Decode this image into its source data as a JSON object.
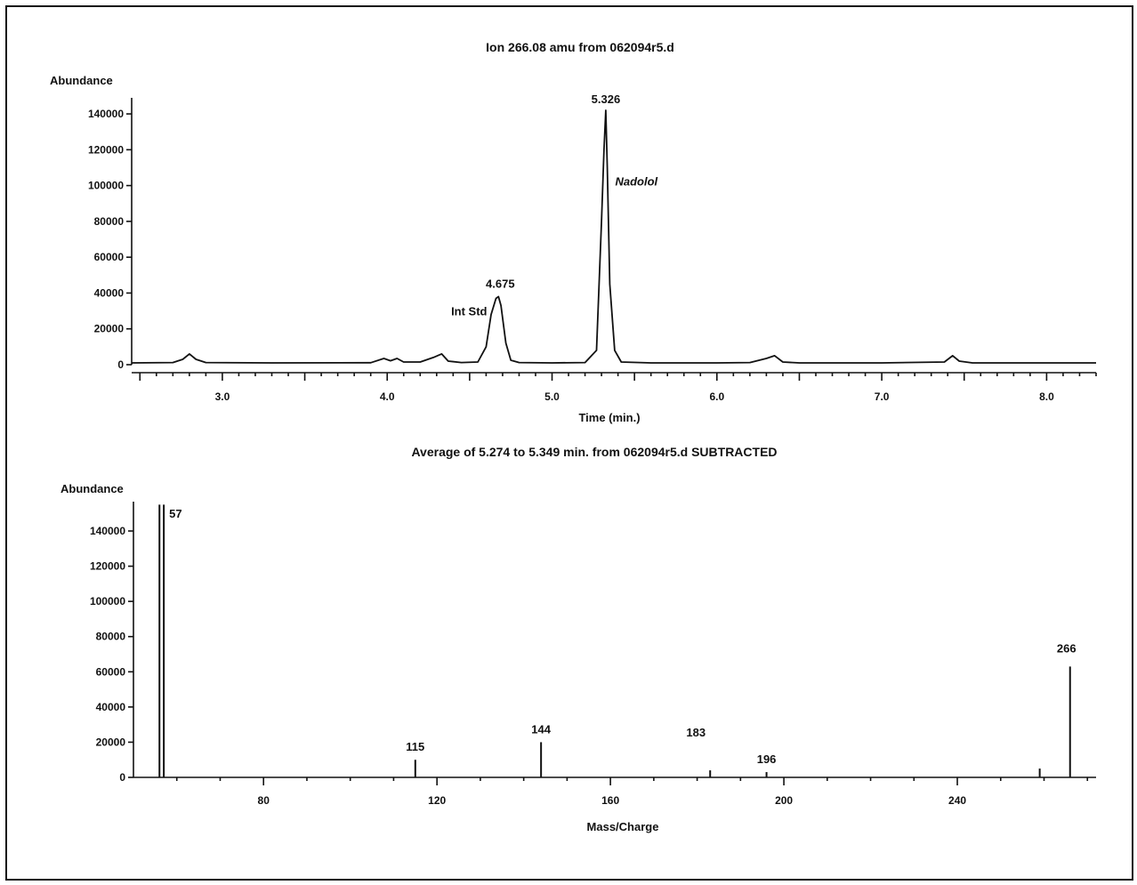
{
  "chart_data": [
    {
      "type": "line",
      "title": "Ion 266.08 amu from 062094r5.d",
      "xlabel": "Time (min.)",
      "ylabel": "Abundance",
      "xlim": [
        2.45,
        8.3
      ],
      "ylim": [
        0,
        145000
      ],
      "xticks": [
        3.0,
        4.0,
        5.0,
        6.0,
        7.0,
        8.0
      ],
      "xtick_labels": [
        "3.0",
        "4.0",
        "5.0",
        "6.0",
        "7.0",
        "8.0"
      ],
      "yticks": [
        0,
        20000,
        40000,
        60000,
        80000,
        100000,
        120000,
        140000
      ],
      "ytick_labels": [
        "0",
        "20000",
        "40000",
        "60000",
        "80000",
        "100000",
        "120000",
        "140000"
      ],
      "series": [
        {
          "x": [
            2.45,
            2.7,
            2.76,
            2.8,
            2.84,
            2.9,
            3.3,
            3.9,
            3.98,
            4.02,
            4.06,
            4.1,
            4.2,
            4.28,
            4.33,
            4.37,
            4.45,
            4.55,
            4.6,
            4.63,
            4.66,
            4.675,
            4.69,
            4.72,
            4.75,
            4.8,
            5.0,
            5.2,
            5.27,
            5.3,
            5.315,
            5.326,
            5.335,
            5.35,
            5.38,
            5.42,
            5.6,
            6.0,
            6.2,
            6.3,
            6.35,
            6.4,
            6.5,
            7.0,
            7.38,
            7.43,
            7.47,
            7.55,
            8.0,
            8.3
          ],
          "y": [
            1000,
            1200,
            3000,
            6000,
            3000,
            1200,
            1000,
            1100,
            3500,
            2200,
            3500,
            1500,
            1500,
            4000,
            6000,
            2000,
            1200,
            1500,
            10000,
            28000,
            37000,
            38000,
            33000,
            12000,
            2500,
            1200,
            1000,
            1200,
            8000,
            80000,
            120000,
            142000,
            110000,
            45000,
            8000,
            1500,
            1000,
            1000,
            1200,
            3500,
            5000,
            1500,
            1000,
            1000,
            1500,
            5000,
            2000,
            1000,
            1000,
            1000
          ]
        }
      ],
      "annotations": [
        {
          "x": 4.675,
          "y": 38000,
          "label": "4.675"
        },
        {
          "x": 4.66,
          "y": 30000,
          "label": "Int Std"
        },
        {
          "x": 5.326,
          "y": 142000,
          "label": "5.326"
        },
        {
          "x": 5.34,
          "y": 95000,
          "label": "Nadolol"
        }
      ]
    },
    {
      "type": "bar",
      "title": "Average of 5.274 to 5.349 min. from 062094r5.d SUBTRACTED",
      "xlabel": "Mass/Charge",
      "ylabel": "Abundance",
      "xlim": [
        50,
        272
      ],
      "ylim": [
        0,
        150000
      ],
      "xticks": [
        80,
        120,
        160,
        200,
        240
      ],
      "xtick_labels": [
        "80",
        "120",
        "160",
        "200",
        "240"
      ],
      "yticks": [
        0,
        20000,
        40000,
        60000,
        80000,
        100000,
        120000,
        140000
      ],
      "ytick_labels": [
        "0",
        "20000",
        "40000",
        "60000",
        "80000",
        "100000",
        "120000",
        "140000"
      ],
      "x": [
        56,
        57,
        115,
        144,
        183,
        196,
        259,
        266
      ],
      "values": [
        155000,
        155000,
        10000,
        20000,
        4000,
        3000,
        5000,
        63000
      ],
      "peak_labels": [
        {
          "mz": 57,
          "label": "57"
        },
        {
          "mz": 115,
          "label": "115"
        },
        {
          "mz": 144,
          "label": "144"
        },
        {
          "mz": 183,
          "label": "183"
        },
        {
          "mz": 196,
          "label": "196"
        },
        {
          "mz": 266,
          "label": "266"
        }
      ]
    }
  ]
}
